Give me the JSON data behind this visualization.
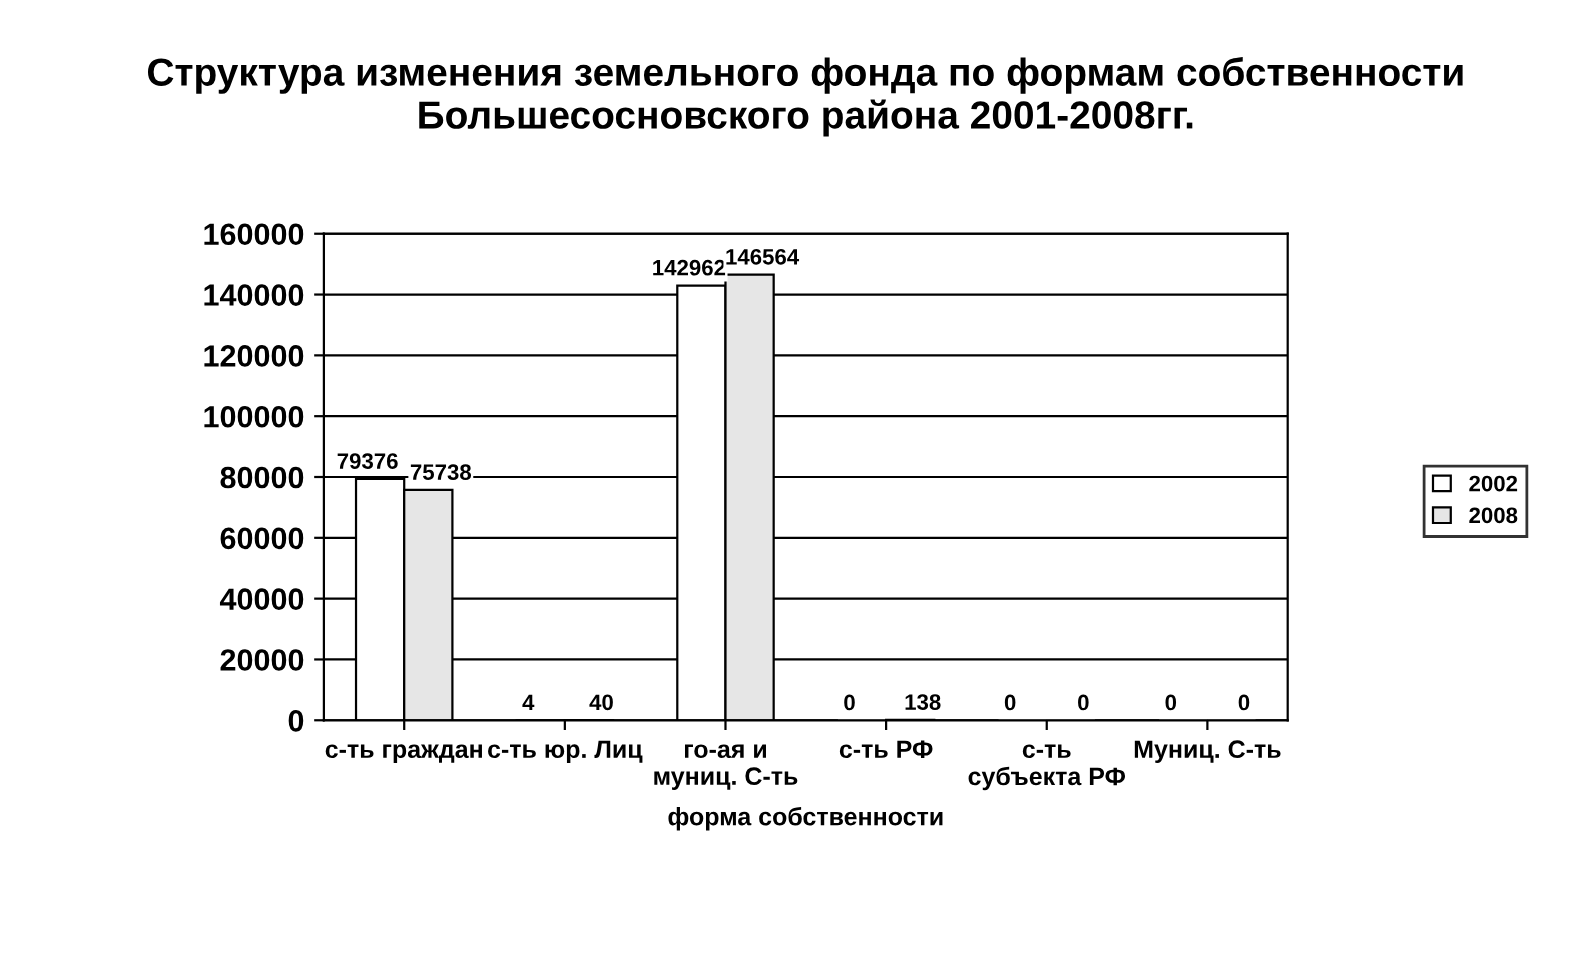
{
  "chart_data": {
    "type": "bar",
    "title": "Структура изменения земельного фонда по формам собственности Большесосновского района 2001-2008гг.",
    "xlabel": "форма собственности",
    "categories": [
      "с-ть граждан",
      "с-ть юр. Лиц",
      "го-ая и муниц. С-ть",
      "с-ть РФ",
      "с-ть субъекта РФ",
      "Муниц. С-ть"
    ],
    "series": [
      {
        "name": "2002",
        "color": "#ffffff",
        "values": [
          79376,
          4,
          142962,
          0,
          0,
          0
        ]
      },
      {
        "name": "2008",
        "color": "#e6e6e6",
        "values": [
          75738,
          40,
          146564,
          138,
          0,
          0
        ]
      }
    ],
    "ylim": [
      0,
      160000
    ],
    "yticks": [
      0,
      20000,
      40000,
      60000,
      80000,
      100000,
      120000,
      140000,
      160000
    ],
    "grid": "y",
    "legend": "right",
    "data_labels": true
  }
}
